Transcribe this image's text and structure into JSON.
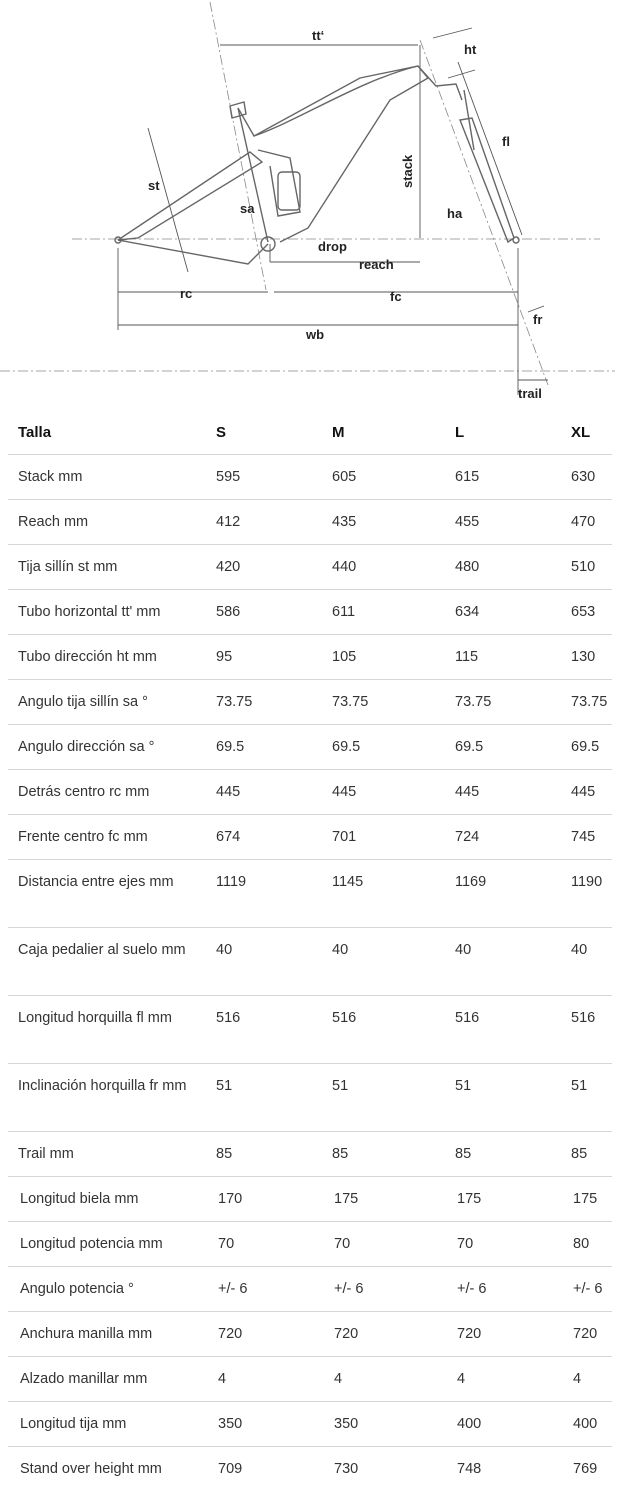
{
  "diagram": {
    "labels": {
      "tt": "tt‘",
      "ht": "ht",
      "fl": "fl",
      "stack": "stack",
      "st": "st",
      "sa": "sa",
      "ha": "ha",
      "drop": "drop",
      "reach": "reach",
      "rc": "rc",
      "fc": "fc",
      "fr": "fr",
      "wb": "wb",
      "trail": "trail"
    }
  },
  "table": {
    "headers": [
      "Talla",
      "S",
      "M",
      "L",
      "XL"
    ],
    "rows": [
      {
        "label": "Stack mm",
        "values": [
          "595",
          "605",
          "615",
          "630"
        ]
      },
      {
        "label": "Reach mm",
        "values": [
          "412",
          "435",
          "455",
          "470"
        ]
      },
      {
        "label": "Tija sillín st mm",
        "values": [
          "420",
          "440",
          "480",
          "510"
        ]
      },
      {
        "label": "Tubo horizontal tt' mm",
        "values": [
          "586",
          "611",
          "634",
          "653"
        ]
      },
      {
        "label": "Tubo dirección ht mm",
        "values": [
          "95",
          "105",
          "115",
          "130"
        ]
      },
      {
        "label": "Angulo tija sillín sa °",
        "values": [
          "73.75",
          "73.75",
          "73.75",
          "73.75"
        ]
      },
      {
        "label": "Angulo dirección sa °",
        "values": [
          "69.5",
          "69.5",
          "69.5",
          "69.5"
        ]
      },
      {
        "label": "Detrás centro rc mm",
        "values": [
          "445",
          "445",
          "445",
          "445"
        ]
      },
      {
        "label": "Frente centro fc mm",
        "values": [
          "674",
          "701",
          "724",
          "745"
        ]
      },
      {
        "label": "Distancia entre ejes mm",
        "values": [
          "1119",
          "1145",
          "1169",
          "1190"
        ]
      },
      {
        "label": "Caja pedalier al suelo mm",
        "values": [
          "40",
          "40",
          "40",
          "40"
        ]
      },
      {
        "label": "Longitud horquilla fl mm",
        "values": [
          "516",
          "516",
          "516",
          "516"
        ]
      },
      {
        "label": "Inclinación horquilla fr mm",
        "values": [
          "51",
          "51",
          "51",
          "51"
        ]
      },
      {
        "label": "Trail mm",
        "values": [
          "85",
          "85",
          "85",
          "85"
        ]
      },
      {
        "label": "Longitud biela mm",
        "values": [
          "170",
          "175",
          "175",
          "175"
        ]
      },
      {
        "label": "Longitud potencia mm",
        "values": [
          "70",
          "70",
          "70",
          "80"
        ]
      },
      {
        "label": "Angulo potencia °",
        "values": [
          "+/- 6",
          "+/- 6",
          "+/- 6",
          "+/- 6"
        ]
      },
      {
        "label": "Anchura manilla mm",
        "values": [
          "720",
          "720",
          "720",
          "720"
        ]
      },
      {
        "label": "Alzado manillar mm",
        "values": [
          "4",
          "4",
          "4",
          "4"
        ]
      },
      {
        "label": "Longitud tija mm",
        "values": [
          "350",
          "350",
          "400",
          "400"
        ]
      },
      {
        "label": "Stand over height mm",
        "values": [
          "709",
          "730",
          "748",
          "769"
        ]
      }
    ]
  }
}
